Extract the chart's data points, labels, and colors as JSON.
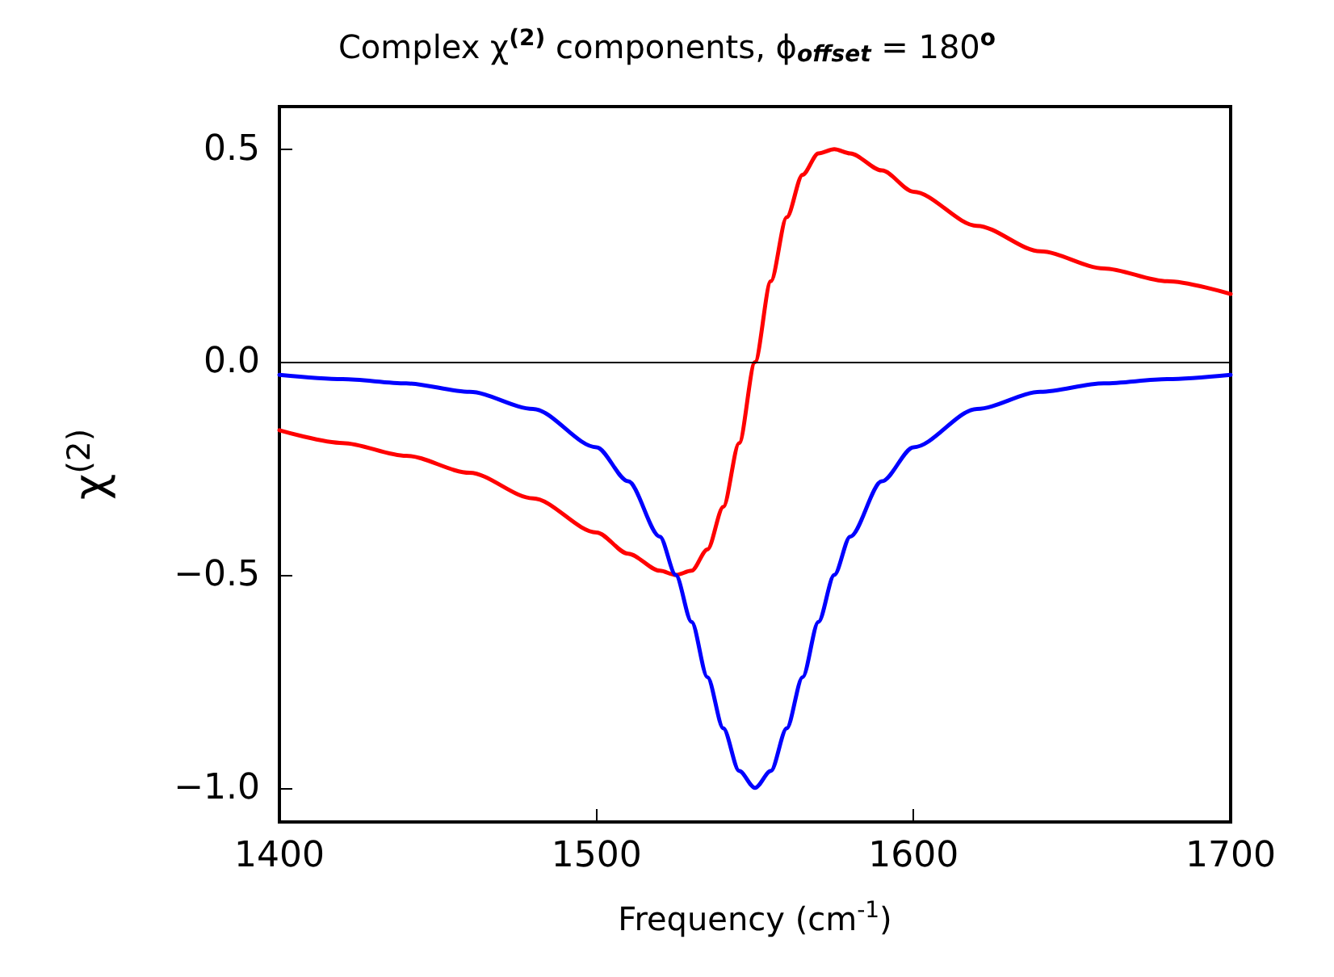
{
  "chart_data": {
    "type": "line",
    "title": "Complex χ$^{(2)}$ components, ϕ$_{offset}$ = 180$^{o}$",
    "xlabel": "Frequency (cm$^{-1}$)",
    "ylabel": "χ$^{(2)}$",
    "x": [
      1400,
      1420,
      1440,
      1460,
      1480,
      1500,
      1510,
      1520,
      1525,
      1530,
      1535,
      1540,
      1545,
      1550,
      1555,
      1560,
      1565,
      1570,
      1575,
      1580,
      1590,
      1600,
      1620,
      1640,
      1660,
      1680,
      1700
    ],
    "series": [
      {
        "color": "#ff0000",
        "values": [
          -0.16,
          -0.19,
          -0.22,
          -0.26,
          -0.32,
          -0.4,
          -0.45,
          -0.49,
          -0.5,
          -0.49,
          -0.44,
          -0.34,
          -0.19,
          0,
          0.19,
          0.34,
          0.44,
          0.49,
          0.5,
          0.49,
          0.45,
          0.4,
          0.32,
          0.26,
          0.22,
          0.19,
          0.16
        ]
      },
      {
        "color": "#0000ff",
        "values": [
          -0.03,
          -0.04,
          -0.05,
          -0.07,
          -0.11,
          -0.2,
          -0.28,
          -0.41,
          -0.5,
          -0.61,
          -0.74,
          -0.86,
          -0.96,
          -1,
          -0.96,
          -0.86,
          -0.74,
          -0.61,
          -0.5,
          -0.41,
          -0.28,
          -0.2,
          -0.11,
          -0.07,
          -0.05,
          -0.04,
          -0.03
        ]
      }
    ],
    "xlim": [
      1400,
      1700
    ],
    "xticks": [
      1400,
      1500,
      1600,
      1700
    ],
    "ylim": [
      -1.08,
      0.6
    ],
    "yticks": [
      {
        "value": -1,
        "label": "−1.0"
      },
      {
        "value": -0.5,
        "label": "−0.5"
      },
      {
        "value": 0,
        "label": "0.0"
      },
      {
        "value": 0.5,
        "label": "0.5"
      }
    ],
    "ref_lines": [
      {
        "axis": "y",
        "value": 0,
        "color": "#000000"
      }
    ],
    "marker": "none",
    "line_style": "solid"
  }
}
